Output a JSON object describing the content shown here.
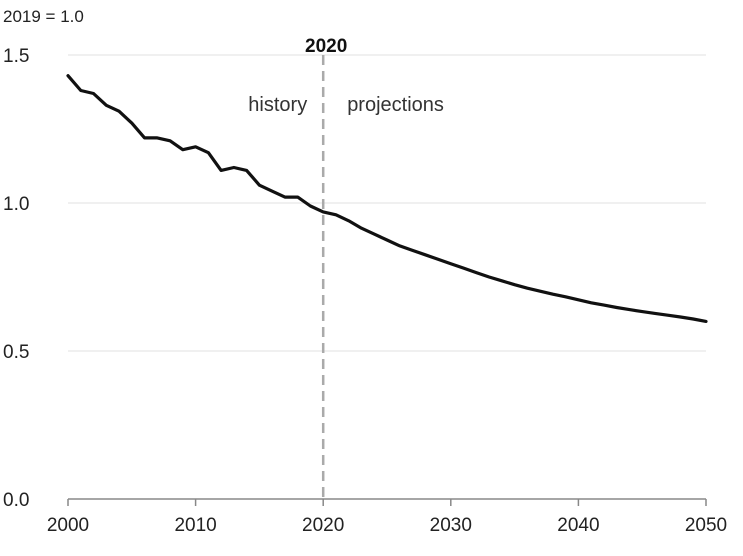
{
  "chart_data": {
    "type": "line",
    "unit_label": "2019 = 1.0",
    "divider": {
      "x": 2020,
      "label": "2020"
    },
    "region_labels": {
      "left": "history",
      "right": "projections"
    },
    "xlim": [
      2000,
      2050
    ],
    "ylim": [
      0,
      1.5
    ],
    "x_ticks": [
      2000,
      2010,
      2020,
      2030,
      2040,
      2050
    ],
    "x_tick_labels": [
      "2000",
      "2010",
      "2020",
      "2030",
      "2040",
      "2050"
    ],
    "y_ticks": [
      0,
      0.5,
      1.0,
      1.5
    ],
    "y_tick_labels": [
      "0.0",
      "0.5",
      "1.0",
      "1.5"
    ],
    "grid": true,
    "series": [
      {
        "x": [
          2000,
          2001,
          2002,
          2003,
          2004,
          2005,
          2006,
          2007,
          2008,
          2009,
          2010,
          2011,
          2012,
          2013,
          2014,
          2015,
          2016,
          2017,
          2018,
          2019,
          2020,
          2021,
          2022,
          2023,
          2024,
          2025,
          2026,
          2027,
          2028,
          2029,
          2030,
          2031,
          2032,
          2033,
          2034,
          2035,
          2036,
          2037,
          2038,
          2039,
          2040,
          2041,
          2042,
          2043,
          2044,
          2045,
          2046,
          2047,
          2048,
          2049,
          2050
        ],
        "y": [
          1.43,
          1.38,
          1.37,
          1.33,
          1.31,
          1.27,
          1.22,
          1.22,
          1.21,
          1.18,
          1.19,
          1.17,
          1.11,
          1.12,
          1.11,
          1.06,
          1.04,
          1.02,
          1.02,
          0.99,
          0.97,
          0.96,
          0.94,
          0.915,
          0.895,
          0.875,
          0.855,
          0.84,
          0.825,
          0.81,
          0.795,
          0.78,
          0.765,
          0.75,
          0.737,
          0.724,
          0.712,
          0.702,
          0.692,
          0.683,
          0.673,
          0.663,
          0.655,
          0.647,
          0.64,
          0.633,
          0.627,
          0.621,
          0.615,
          0.608,
          0.6
        ]
      }
    ]
  }
}
